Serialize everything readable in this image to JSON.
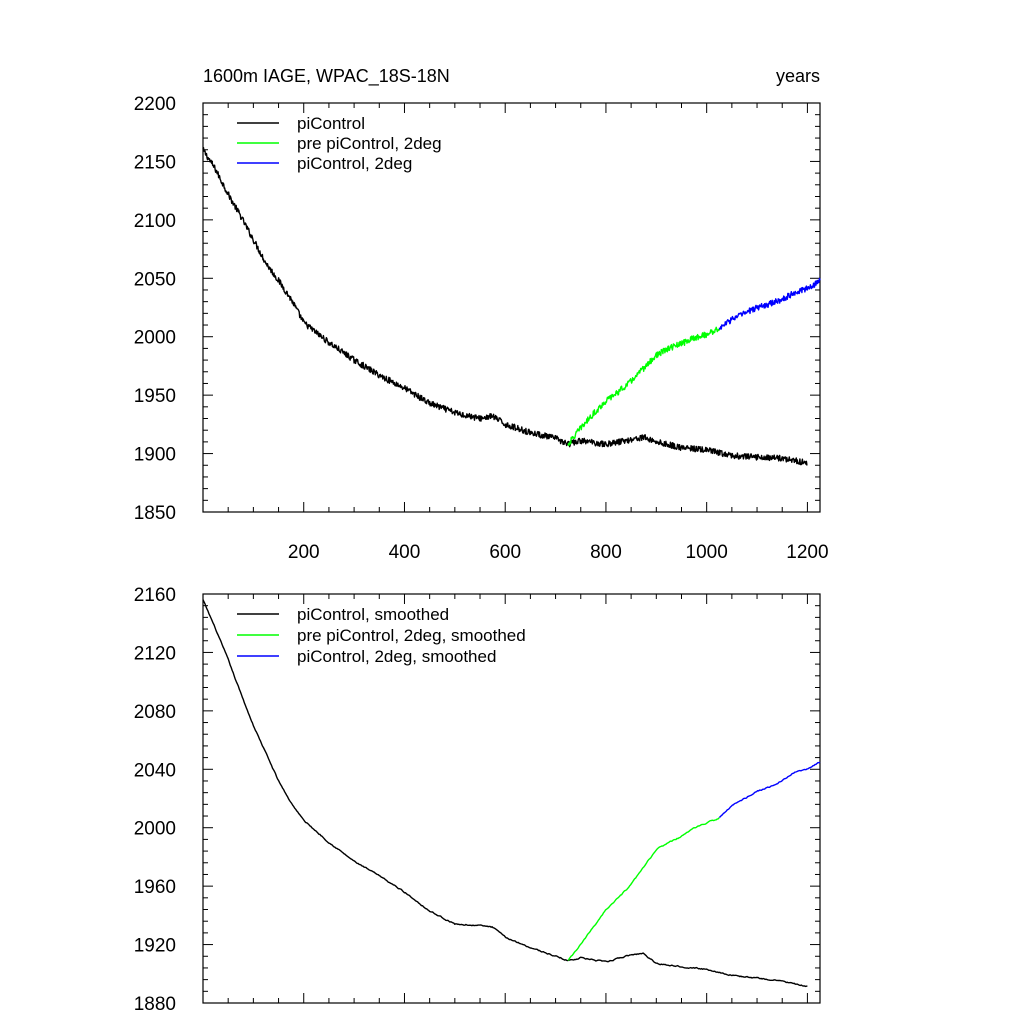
{
  "chart_data": [
    {
      "type": "line",
      "title": "1600m IAGE, WPAC_18S-18N",
      "units_label": "years",
      "xlim": [
        0,
        1225
      ],
      "ylim": [
        1850,
        2200
      ],
      "xticks": [
        200,
        400,
        600,
        800,
        1000,
        1200
      ],
      "xtick_labels": [
        "200",
        "400",
        "600",
        "800",
        "1000",
        "1200"
      ],
      "yticks": [
        1850,
        1900,
        1950,
        2000,
        2050,
        2100,
        2150,
        2200
      ],
      "ytick_labels": [
        "1850",
        "1900",
        "1950",
        "2000",
        "2050",
        "2100",
        "2150",
        "2200"
      ],
      "legend": [
        "piControl",
        "pre piControl, 2deg",
        "piControl, 2deg"
      ],
      "series": [
        {
          "name": "piControl",
          "color": "#000000",
          "x": [
            0,
            25,
            50,
            75,
            100,
            125,
            150,
            175,
            200,
            250,
            300,
            350,
            400,
            450,
            500,
            550,
            575,
            600,
            650,
            700,
            725,
            750,
            800,
            850,
            875,
            900,
            950,
            1000,
            1050,
            1100,
            1150,
            1200
          ],
          "y": [
            2160,
            2143,
            2122,
            2103,
            2083,
            2063,
            2048,
            2032,
            2012,
            1995,
            1980,
            1967,
            1956,
            1943,
            1935,
            1930,
            1932,
            1925,
            1918,
            1913,
            1908,
            1911,
            1908,
            1912,
            1914,
            1910,
            1905,
            1903,
            1898,
            1897,
            1896,
            1892
          ]
        },
        {
          "name": "pre piControl, 2deg",
          "color": "#00ff00",
          "x": [
            725,
            750,
            775,
            800,
            825,
            850,
            875,
            900,
            925,
            950,
            975,
            1000,
            1025
          ],
          "y": [
            1908,
            1922,
            1934,
            1945,
            1953,
            1962,
            1973,
            1984,
            1990,
            1994,
            1999,
            2002,
            2007
          ]
        },
        {
          "name": "piControl, 2deg",
          "color": "#0000ff",
          "x": [
            1025,
            1050,
            1075,
            1100,
            1125,
            1150,
            1175,
            1200,
            1225
          ],
          "y": [
            2007,
            2015,
            2020,
            2025,
            2028,
            2032,
            2038,
            2041,
            2048
          ]
        }
      ]
    },
    {
      "type": "line",
      "xlim": [
        0,
        1225
      ],
      "ylim": [
        1880,
        2160
      ],
      "xticks": [
        200,
        400,
        600,
        800,
        1000,
        1200
      ],
      "yticks": [
        1880,
        1920,
        1960,
        2000,
        2040,
        2080,
        2120,
        2160
      ],
      "ytick_labels": [
        "1880",
        "1920",
        "1960",
        "2000",
        "2040",
        "2080",
        "2120",
        "2160"
      ],
      "legend": [
        "piControl, smoothed",
        "pre piControl, 2deg, smoothed",
        "piControl, 2deg, smoothed"
      ],
      "series": [
        {
          "name": "piControl, smoothed",
          "color": "#000000",
          "x": [
            0,
            25,
            50,
            75,
            100,
            125,
            150,
            175,
            200,
            250,
            300,
            350,
            400,
            450,
            500,
            550,
            575,
            600,
            650,
            700,
            725,
            750,
            800,
            850,
            875,
            900,
            950,
            1000,
            1050,
            1100,
            1150,
            1200
          ],
          "y": [
            2156,
            2136,
            2115,
            2092,
            2070,
            2051,
            2032,
            2017,
            2005,
            1990,
            1977,
            1967,
            1956,
            1943,
            1934,
            1933,
            1932,
            1925,
            1918,
            1912,
            1909,
            1911,
            1908,
            1913,
            1914,
            1907,
            1905,
            1903,
            1899,
            1897,
            1895,
            1891
          ]
        },
        {
          "name": "pre piControl, 2deg, smoothed",
          "color": "#00ff00",
          "x": [
            725,
            750,
            775,
            800,
            825,
            850,
            875,
            900,
            925,
            950,
            975,
            1000,
            1025
          ],
          "y": [
            1909,
            1920,
            1932,
            1944,
            1952,
            1961,
            1973,
            1985,
            1990,
            1994,
            2000,
            2003,
            2007
          ]
        },
        {
          "name": "piControl, 2deg, smoothed",
          "color": "#0000ff",
          "x": [
            1025,
            1050,
            1075,
            1100,
            1125,
            1150,
            1175,
            1200,
            1225
          ],
          "y": [
            2007,
            2015,
            2020,
            2025,
            2028,
            2032,
            2038,
            2040,
            2045
          ]
        }
      ]
    }
  ]
}
